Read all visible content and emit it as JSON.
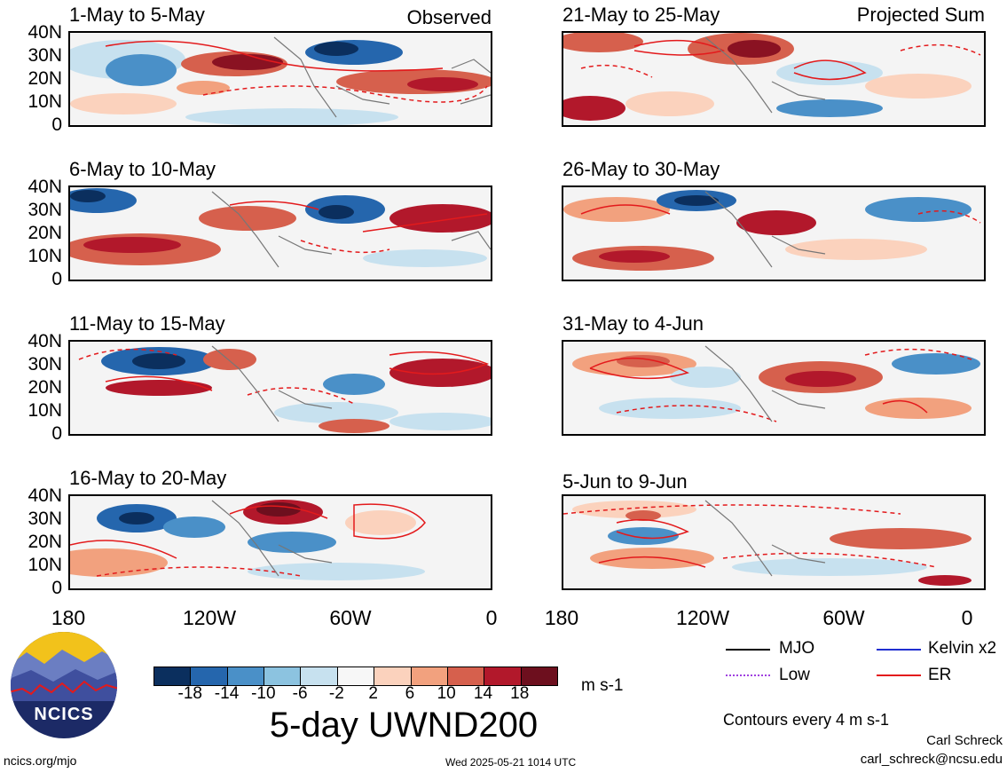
{
  "panels_left": [
    {
      "title": "1-May to 5-May",
      "corner": "Observed"
    },
    {
      "title": "6-May to 10-May",
      "corner": ""
    },
    {
      "title": "11-May to 15-May",
      "corner": ""
    },
    {
      "title": "16-May to 20-May",
      "corner": ""
    }
  ],
  "panels_right": [
    {
      "title": "21-May to 25-May",
      "corner": "Projected Sum"
    },
    {
      "title": "26-May to 30-May",
      "corner": ""
    },
    {
      "title": "31-May to 4-Jun",
      "corner": ""
    },
    {
      "title": "5-Jun to 9-Jun",
      "corner": ""
    }
  ],
  "lat_labels": [
    "40N",
    "30N",
    "20N",
    "10N",
    "0"
  ],
  "lon_labels": [
    "180",
    "120W",
    "60W",
    "0"
  ],
  "colorbar": {
    "ticks": [
      "-18",
      "-14",
      "-10",
      "-6",
      "-2",
      "2",
      "6",
      "10",
      "14",
      "18"
    ],
    "colors": [
      "#0b2f5e",
      "#2566ad",
      "#4a90c8",
      "#8cc3e0",
      "#c7e1ef",
      "#f7f7f7",
      "#fbd2bd",
      "#f2a17e",
      "#d6604d",
      "#b2182b",
      "#6d0f1e"
    ],
    "units": "m s-1"
  },
  "main_title": "5-day UWND200",
  "legend": [
    {
      "label": "MJO",
      "color": "#000000",
      "style": "solid"
    },
    {
      "label": "Kelvin x2",
      "color": "#1f2fd0",
      "style": "solid"
    },
    {
      "label": "Low",
      "color": "#a040e0",
      "style": "dotted"
    },
    {
      "label": "ER",
      "color": "#e31a1c",
      "style": "solid"
    }
  ],
  "contour_note": "Contours every 4 m s-1",
  "author": "Carl Schreck",
  "email": "carl_schreck@ncsu.edu",
  "site": "ncics.org/mjo",
  "timestamp": "Wed 2025-05-21 1014 UTC",
  "logo_text": "NCICS"
}
